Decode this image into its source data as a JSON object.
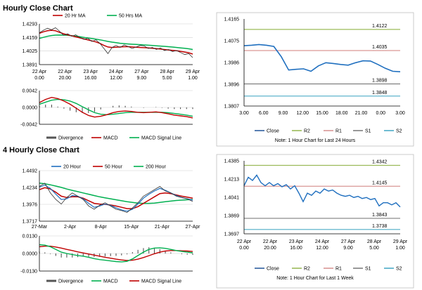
{
  "titles": {
    "hourly": "Hourly Close Chart",
    "four_hourly": "4 Hourly Close Chart"
  },
  "colors": {
    "red": "#c00000",
    "green": "#00b050",
    "blue": "#1f6fbf",
    "navy": "#2e5e9e",
    "olive": "#9bbb59",
    "salmon": "#d99694",
    "gray": "#7f7f7f",
    "cyan": "#4bacc6",
    "bar": "#555555"
  },
  "chart_data": [
    {
      "id": "hourly-price",
      "type": "line",
      "ylim": [
        1.3891,
        1.4293
      ],
      "yticks": [
        "1.4293",
        "1.4159",
        "1.4025",
        "1.3891"
      ],
      "xticks": [
        [
          "22 Apr",
          "0.00"
        ],
        [
          "22 Apr",
          "20.00"
        ],
        [
          "23 Apr",
          "16.00"
        ],
        [
          "24 Apr",
          "12.00"
        ],
        [
          "27 Apr",
          "9.00"
        ],
        [
          "28 Apr",
          "5.00"
        ],
        [
          "29 Apr",
          "1.00"
        ]
      ],
      "legend": [
        "20 Hr MA",
        "50 Hrs MA"
      ],
      "series": [
        {
          "name": "Close",
          "values": [
            1.4205,
            1.423,
            1.425,
            1.4235,
            1.4255,
            1.422,
            1.418,
            1.4195,
            1.417,
            1.4185,
            1.416,
            1.414,
            1.415,
            1.412,
            1.4135,
            1.41,
            1.405,
            1.4,
            1.406,
            1.408,
            1.406,
            1.4085,
            1.407,
            1.405,
            1.4065,
            1.408,
            1.4075,
            1.405,
            1.406,
            1.404,
            1.4055,
            1.403,
            1.404,
            1.402,
            1.403,
            1.401,
            1.399,
            1.4,
            1.396
          ]
        },
        {
          "name": "20 Hr MA",
          "values": [
            1.42,
            1.4215,
            1.4225,
            1.423,
            1.4225,
            1.421,
            1.4195,
            1.4185,
            1.4175,
            1.4165,
            1.4155,
            1.4145,
            1.4135,
            1.4125,
            1.4115,
            1.41,
            1.408,
            1.4065,
            1.406,
            1.4062,
            1.4065,
            1.4068,
            1.4068,
            1.4065,
            1.4062,
            1.406,
            1.4058,
            1.4055,
            1.4052,
            1.4048,
            1.4044,
            1.404,
            1.4036,
            1.4032,
            1.4028,
            1.4022,
            1.4015,
            1.4008,
            1.3995
          ]
        },
        {
          "name": "50 Hrs MA",
          "values": [
            1.415,
            1.416,
            1.417,
            1.4178,
            1.4182,
            1.4183,
            1.4182,
            1.418,
            1.4176,
            1.4172,
            1.4166,
            1.416,
            1.4154,
            1.4148,
            1.4142,
            1.4136,
            1.4128,
            1.412,
            1.4113,
            1.4107,
            1.4102,
            1.4098,
            1.4095,
            1.4092,
            1.409,
            1.4088,
            1.4085,
            1.4082,
            1.408,
            1.4077,
            1.4074,
            1.4071,
            1.4068,
            1.4064,
            1.406,
            1.4056,
            1.4052,
            1.4047,
            1.404
          ]
        }
      ]
    },
    {
      "id": "hourly-macd",
      "type": "line",
      "ylim": [
        -0.0042,
        0.0042
      ],
      "yticks": [
        "0.0042",
        "0.0000",
        "-0.0042"
      ],
      "legend": [
        "Divergence",
        "MACD",
        "MACD Signal Line"
      ],
      "series": [
        {
          "name": "MACD",
          "values": [
            0.0012,
            0.002,
            0.0025,
            0.0022,
            0.0016,
            0.0008,
            -0.0002,
            -0.0012,
            -0.002,
            -0.0024,
            -0.0022,
            -0.0018,
            -0.0013,
            -0.001,
            -0.0009,
            -0.001,
            -0.0012,
            -0.0013,
            -0.0012,
            -0.0011,
            -0.0013,
            -0.0016,
            -0.0019,
            -0.0021,
            -0.0023,
            -0.0026
          ]
        },
        {
          "name": "MACD Signal Line",
          "values": [
            0.0008,
            0.0013,
            0.0018,
            0.002,
            0.0019,
            0.0016,
            0.001,
            0.0002,
            -0.0006,
            -0.0013,
            -0.0017,
            -0.0018,
            -0.0017,
            -0.0015,
            -0.0013,
            -0.0012,
            -0.0012,
            -0.0012,
            -0.0012,
            -0.0012,
            -0.0012,
            -0.0013,
            -0.0015,
            -0.0017,
            -0.0019,
            -0.0022
          ]
        }
      ]
    },
    {
      "id": "hourly-right",
      "type": "line",
      "ylim": [
        1.3807,
        1.4165
      ],
      "yticks": [
        "1.4165",
        "1.4075",
        "1.3986",
        "1.3896",
        "1.3807"
      ],
      "xticks": [
        "3.00",
        "6.00",
        "9.00",
        "12.00",
        "15.00",
        "18.00",
        "21.00",
        "0.00",
        "3.00"
      ],
      "legend": [
        "Close",
        "R2",
        "R1",
        "S1",
        "S2"
      ],
      "note": "Note: 1 Hour Chart for Last 24 Hours",
      "levels": [
        {
          "name": "R2",
          "value": 1.4122,
          "label": "1.4122"
        },
        {
          "name": "R1",
          "value": 1.4035,
          "label": "1.4035"
        },
        {
          "name": "S1",
          "value": 1.3898,
          "label": "1.3898"
        },
        {
          "name": "S2",
          "value": 1.3848,
          "label": "1.3848"
        }
      ],
      "series": [
        {
          "name": "Close",
          "values": [
            1.4055,
            1.4057,
            1.406,
            1.4057,
            1.4052,
            1.401,
            1.3955,
            1.3958,
            1.396,
            1.395,
            1.3972,
            1.3985,
            1.3982,
            1.3978,
            1.3975,
            1.3985,
            1.3993,
            1.3992,
            1.3978,
            1.3962,
            1.395,
            1.3948
          ]
        }
      ]
    },
    {
      "id": "four-hourly-price",
      "type": "line",
      "ylim": [
        1.3717,
        1.4492
      ],
      "yticks": [
        "1.4492",
        "1.4234",
        "1.3976",
        "1.3717"
      ],
      "xticks": [
        "27-Mar",
        "2-Apr",
        "8-Apr",
        "15-Apr",
        "21-Apr",
        "27-Apr"
      ],
      "legend": [
        "20 Hour",
        "50 Hour",
        "200 Hour"
      ],
      "series": [
        {
          "name": "Close",
          "values": [
            1.425,
            1.43,
            1.415,
            1.405,
            1.398,
            1.408,
            1.415,
            1.41,
            1.405,
            1.395,
            1.39,
            1.396,
            1.4,
            1.395,
            1.39,
            1.388,
            1.385,
            1.392,
            1.4,
            1.41,
            1.415,
            1.42,
            1.425,
            1.418,
            1.415,
            1.41,
            1.408,
            1.406,
            1.402
          ]
        },
        {
          "name": "20 Hour",
          "values": [
            1.424,
            1.427,
            1.422,
            1.413,
            1.405,
            1.406,
            1.411,
            1.41,
            1.406,
            1.399,
            1.393,
            1.395,
            1.398,
            1.396,
            1.392,
            1.389,
            1.387,
            1.39,
            1.398,
            1.407,
            1.413,
            1.418,
            1.422,
            1.419,
            1.415,
            1.411,
            1.408,
            1.406,
            1.404
          ]
        },
        {
          "name": "50 Hour",
          "values": [
            1.42,
            1.423,
            1.421,
            1.416,
            1.41,
            1.408,
            1.409,
            1.409,
            1.407,
            1.403,
            1.399,
            1.398,
            1.3975,
            1.3965,
            1.395,
            1.393,
            1.391,
            1.391,
            1.394,
            1.399,
            1.404,
            1.409,
            1.414,
            1.415,
            1.414,
            1.412,
            1.41,
            1.4085,
            1.407
          ]
        },
        {
          "name": "200 Hour",
          "values": [
            1.43,
            1.429,
            1.4275,
            1.4255,
            1.4235,
            1.421,
            1.419,
            1.417,
            1.415,
            1.413,
            1.411,
            1.409,
            1.4075,
            1.406,
            1.4045,
            1.403,
            1.4015,
            1.4005,
            1.3995,
            1.399,
            1.399,
            1.3995,
            1.4005,
            1.4015,
            1.4025,
            1.4035,
            1.404,
            1.4045,
            1.405
          ]
        }
      ]
    },
    {
      "id": "four-hourly-macd",
      "type": "line",
      "ylim": [
        -0.013,
        0.013
      ],
      "yticks": [
        "0.0130",
        "0.0000",
        "-0.0130"
      ],
      "legend": [
        "Divergence",
        "MACD",
        "MACD Signal Line"
      ],
      "series": [
        {
          "name": "MACD",
          "values": [
            0.0065,
            0.0062,
            0.005,
            0.003,
            0.001,
            0.0,
            -0.0008,
            -0.0015,
            -0.002,
            -0.0028,
            -0.0038,
            -0.0045,
            -0.005,
            -0.0055,
            -0.006,
            -0.0062,
            -0.0058,
            -0.004,
            -0.0015,
            0.001,
            0.003,
            0.004,
            0.0042,
            0.0038,
            0.003,
            0.0022,
            0.0015,
            0.001,
            0.0005
          ]
        },
        {
          "name": "MACD Signal Line",
          "values": [
            0.005,
            0.0054,
            0.0054,
            0.0048,
            0.004,
            0.003,
            0.0022,
            0.0012,
            0.0004,
            -0.0004,
            -0.0012,
            -0.002,
            -0.0028,
            -0.0035,
            -0.0042,
            -0.0048,
            -0.0052,
            -0.005,
            -0.0042,
            -0.003,
            -0.0016,
            -0.0002,
            0.001,
            0.0018,
            0.0022,
            0.0022,
            0.002,
            0.0018,
            0.0015
          ]
        }
      ]
    },
    {
      "id": "four-hourly-right",
      "type": "line",
      "ylim": [
        1.3697,
        1.4385
      ],
      "yticks": [
        "1.4385",
        "1.4213",
        "1.4041",
        "1.3869",
        "1.3697"
      ],
      "xticks": [
        [
          "22 Apr",
          "0.00"
        ],
        [
          "22 Apr",
          "20.00"
        ],
        [
          "23 Apr",
          "16.00"
        ],
        [
          "24 Apr",
          "12.00"
        ],
        [
          "27 Apr",
          "9.00"
        ],
        [
          "28 Apr",
          "5.00"
        ],
        [
          "29 Apr",
          "1.00"
        ]
      ],
      "legend": [
        "Close",
        "R2",
        "R1",
        "S1",
        "S2"
      ],
      "note": "Note: 1 Hour Chart for  Last 1 Week",
      "levels": [
        {
          "name": "R2",
          "value": 1.4342,
          "label": "1.4342"
        },
        {
          "name": "R1",
          "value": 1.4145,
          "label": "1.4145"
        },
        {
          "name": "S1",
          "value": 1.3843,
          "label": "1.3843"
        },
        {
          "name": "S2",
          "value": 1.3738,
          "label": "1.3738"
        }
      ],
      "series": [
        {
          "name": "Close",
          "values": [
            1.415,
            1.423,
            1.42,
            1.425,
            1.418,
            1.415,
            1.418,
            1.415,
            1.417,
            1.414,
            1.416,
            1.412,
            1.415,
            1.408,
            1.4,
            1.408,
            1.406,
            1.41,
            1.408,
            1.412,
            1.41,
            1.411,
            1.408,
            1.406,
            1.405,
            1.406,
            1.404,
            1.405,
            1.403,
            1.404,
            1.402,
            1.403,
            1.396,
            1.399,
            1.399,
            1.397,
            1.399,
            1.395
          ]
        }
      ]
    }
  ]
}
